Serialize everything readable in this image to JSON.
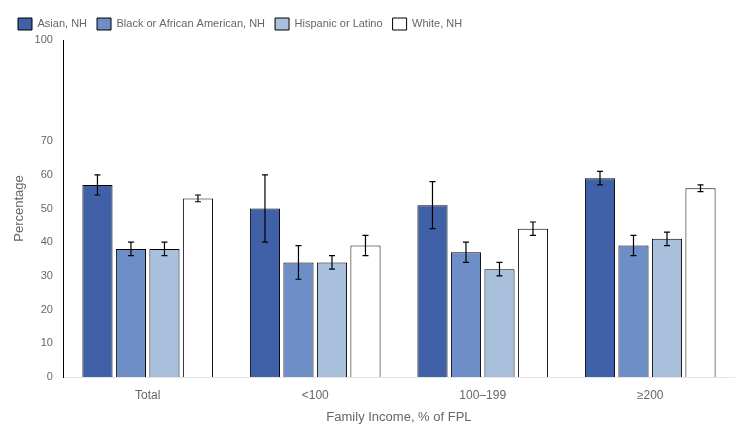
{
  "chart_data": {
    "type": "bar",
    "xlabel": "Family Income, % of FPL",
    "ylabel": "Percentage",
    "categories": [
      "Total",
      "<100",
      "100–199",
      "≥200"
    ],
    "series": [
      {
        "name": "Asian, NH",
        "color": "#4060A8",
        "values": [
          57,
          50,
          51,
          59
        ],
        "errors": [
          [
            3,
            3
          ],
          [
            10,
            10
          ],
          [
            7,
            7
          ],
          [
            2,
            2
          ]
        ]
      },
      {
        "name": "Black or African American, NH",
        "color": "#6E8EC8",
        "values": [
          38,
          34,
          37,
          39
        ],
        "errors": [
          [
            2,
            2
          ],
          [
            5,
            5
          ],
          [
            3,
            3
          ],
          [
            3,
            3
          ]
        ]
      },
      {
        "name": "Hispanic or Latino",
        "color": "#A8C0DC",
        "values": [
          38,
          34,
          32,
          41
        ],
        "errors": [
          [
            2,
            2
          ],
          [
            2,
            2
          ],
          [
            2,
            2
          ],
          [
            2,
            2
          ]
        ]
      },
      {
        "name": "White, NH",
        "color": "#FFFFFF",
        "values": [
          53,
          39,
          44,
          56
        ],
        "errors": [
          [
            1,
            1
          ],
          [
            3,
            3
          ],
          [
            2,
            2
          ],
          [
            1,
            1
          ]
        ]
      }
    ],
    "ylim": [
      0,
      100
    ],
    "yticks": [
      0,
      10,
      20,
      30,
      40,
      50,
      60,
      70,
      100
    ],
    "grid": false,
    "legend": "upper left"
  }
}
